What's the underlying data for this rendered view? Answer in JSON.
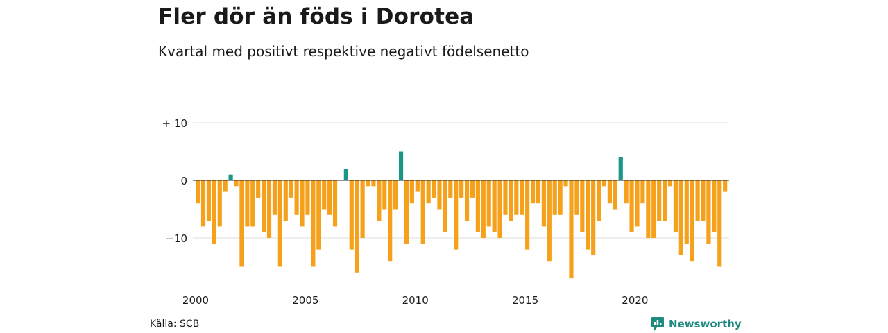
{
  "title": "Fler dör än föds i Dorotea",
  "subtitle": "Kvartal med positivt respektive negativt födelsenetto",
  "source": "Källa: SCB",
  "brand": {
    "name": "Newsworthy",
    "icon": "newsworthy-logo-icon",
    "color": "#1f8a80"
  },
  "colors": {
    "negative": "#f5a11c",
    "positive": "#1a9688",
    "grid": "#dddddd",
    "zero": "#222222"
  },
  "chart_data": {
    "type": "bar",
    "title": "Fler dör än föds i Dorotea",
    "subtitle": "Kvartal med positivt respektive negativt födelsenetto",
    "xlabel": "",
    "ylabel": "",
    "x_start_year": 2000,
    "periods_per_year": 4,
    "x_tick_labels": [
      "2000",
      "2005",
      "2010",
      "2015",
      "2020"
    ],
    "y_ticks": [
      10,
      0,
      -10
    ],
    "y_tick_labels": [
      "+ 10",
      "0",
      "−10"
    ],
    "ylim": [
      -17,
      10
    ],
    "grid": true,
    "values": [
      -4,
      -8,
      -7,
      -11,
      -8,
      -2,
      1,
      -1,
      -15,
      -8,
      -8,
      -3,
      -9,
      -10,
      -6,
      -15,
      -7,
      -3,
      -6,
      -8,
      -6,
      -15,
      -12,
      -5,
      -6,
      -8,
      0,
      2,
      -12,
      -16,
      -10,
      -1,
      -1,
      -7,
      -5,
      -14,
      -5,
      5,
      -11,
      -4,
      -2,
      -11,
      -4,
      -3,
      -5,
      -9,
      -3,
      -12,
      -3,
      -7,
      -3,
      -9,
      -10,
      -8,
      -9,
      -10,
      -6,
      -7,
      -6,
      -6,
      -12,
      -4,
      -4,
      -8,
      -14,
      -6,
      -6,
      -1,
      -17,
      -6,
      -9,
      -12,
      -13,
      -7,
      -1,
      -4,
      -5,
      4,
      -4,
      -9,
      -8,
      -4,
      -10,
      -10,
      -7,
      -7,
      -1,
      -9,
      -13,
      -11,
      -14,
      -7,
      -7,
      -11,
      -9,
      -15,
      -2
    ]
  }
}
